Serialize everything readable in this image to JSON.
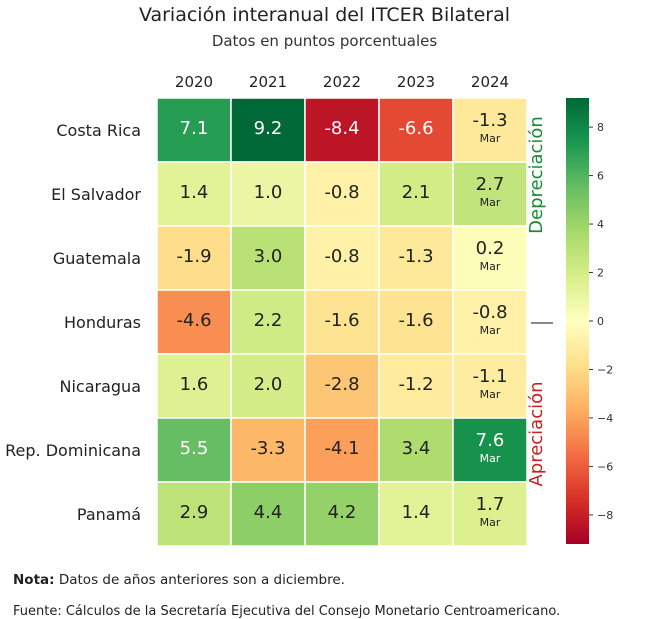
{
  "chart_data": {
    "type": "heatmap",
    "title": "Variación interanual del ITCER Bilateral",
    "subtitle": "Datos en puntos porcentuales",
    "columns": [
      "2020",
      "2021",
      "2022",
      "2023",
      "2024"
    ],
    "rows": [
      "Costa Rica",
      "El Salvador",
      "Guatemala",
      "Honduras",
      "Nicaragua",
      "Rep. Dominicana",
      "Panamá"
    ],
    "values": [
      [
        7.1,
        9.2,
        -8.4,
        -6.6,
        -1.3
      ],
      [
        1.4,
        1.0,
        -0.8,
        2.1,
        2.7
      ],
      [
        -1.9,
        3.0,
        -0.8,
        -1.3,
        0.2
      ],
      [
        -4.6,
        2.2,
        -1.6,
        -1.6,
        -0.8
      ],
      [
        1.6,
        2.0,
        -2.8,
        -1.2,
        -1.1
      ],
      [
        5.5,
        -3.3,
        -4.1,
        3.4,
        7.6
      ],
      [
        2.9,
        4.4,
        4.2,
        1.4,
        1.7
      ]
    ],
    "cell_labels": [
      [
        "7.1",
        "9.2",
        "-8.4",
        "-6.6",
        "-1.3"
      ],
      [
        "1.4",
        "1.0",
        "-0.8",
        "2.1",
        "2.7"
      ],
      [
        "-1.9",
        "3.0",
        "-0.8",
        "-1.3",
        "0.2"
      ],
      [
        "-4.6",
        "2.2",
        "-1.6",
        "-1.6",
        "-0.8"
      ],
      [
        "1.6",
        "2.0",
        "-2.8",
        "-1.2",
        "-1.1"
      ],
      [
        "5.5",
        "-3.3",
        "-4.1",
        "3.4",
        "7.6"
      ],
      [
        "2.9",
        "4.4",
        "4.2",
        "1.4",
        "1.7"
      ]
    ],
    "last_column_note": "Mar",
    "colorscale": "RdYlGn",
    "vmin": -9.2,
    "vmax": 9.2,
    "colorbar_ticks": [
      8,
      6,
      4,
      2,
      0,
      -2,
      -4,
      -6,
      -8
    ],
    "colorbar_tick_labels": [
      "8",
      "6",
      "4",
      "2",
      "0",
      "−2",
      "−4",
      "−6",
      "−8"
    ],
    "side_label_top": "Depreciación",
    "side_label_bottom": "Apreciación",
    "side_label_top_color": "#1a8a35",
    "side_label_bottom_color": "#cc1f1f"
  },
  "note": {
    "label": "Nota",
    "text": "Datos de años anteriores son a diciembre."
  },
  "source": "Fuente: Cálculos de la Secretaría Ejecutiva del Consejo Monetario Centroamericano."
}
